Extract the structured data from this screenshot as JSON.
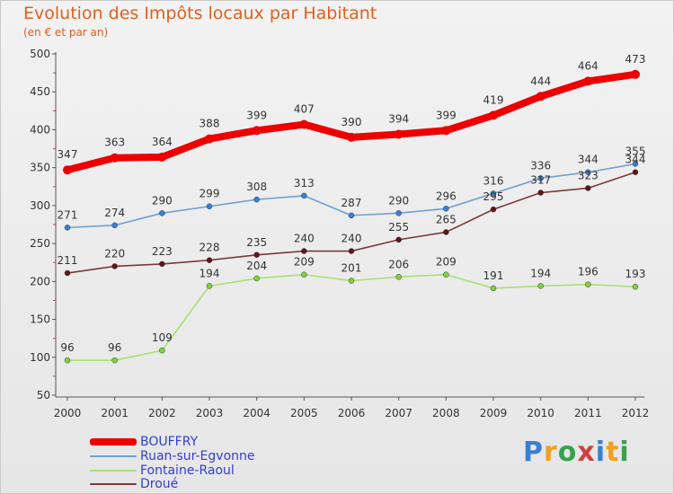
{
  "title": "Evolution des Impôts locaux par Habitant",
  "subtitle": "(en € et par an)",
  "brand": {
    "letters": [
      "P",
      "r",
      "o",
      "x",
      "i",
      "t",
      "i"
    ],
    "colors": [
      "#3a7fd0",
      "#f0a020",
      "#3aa050",
      "#d04040",
      "#3a7fd0",
      "#f0a020",
      "#3aa050"
    ]
  },
  "chart_data": {
    "type": "line",
    "x": [
      "2000",
      "2001",
      "2002",
      "2003",
      "2004",
      "2005",
      "2006",
      "2007",
      "2008",
      "2009",
      "2010",
      "2011",
      "2012"
    ],
    "ylim": [
      50,
      500
    ],
    "yticks": [
      50,
      100,
      150,
      200,
      250,
      300,
      350,
      400,
      450,
      500
    ],
    "grid": false,
    "legend_position": "bottom-left",
    "series": [
      {
        "name": "BOUFFRY",
        "color": "#ee0000",
        "marker_color": "#ee0000",
        "values": [
          347,
          363,
          364,
          388,
          399,
          407,
          390,
          394,
          399,
          419,
          444,
          464,
          473
        ]
      },
      {
        "name": "Ruan-sur-Egvonne",
        "color": "#6ea0d0",
        "marker_color": "#3a80d0",
        "values": [
          271,
          274,
          290,
          299,
          308,
          313,
          287,
          290,
          296,
          316,
          336,
          344,
          355
        ]
      },
      {
        "name": "Fontaine-Raoul",
        "color": "#a8e070",
        "marker_color": "#80d040",
        "values": [
          96,
          96,
          109,
          194,
          204,
          209,
          201,
          206,
          209,
          191,
          194,
          196,
          193
        ]
      },
      {
        "name": "Droué",
        "color": "#7a3a3a",
        "marker_color": "#5a1818",
        "values": [
          211,
          220,
          223,
          228,
          235,
          240,
          240,
          255,
          265,
          295,
          317,
          323,
          344
        ]
      }
    ]
  }
}
